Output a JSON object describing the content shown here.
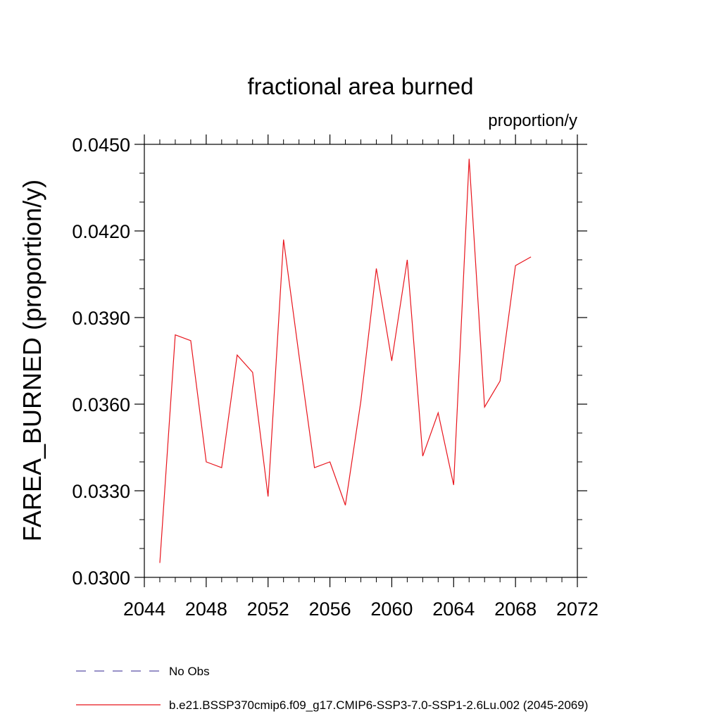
{
  "chart_data": {
    "type": "line",
    "title": "fractional area burned",
    "units_label": "proportion/y",
    "ylabel": "FAREA_BURNED  (proportion/y)",
    "xlabel": "",
    "xlim": [
      2044,
      2072
    ],
    "ylim": [
      0.03,
      0.045
    ],
    "x_ticks": [
      "2044",
      "2048",
      "2052",
      "2056",
      "2060",
      "2064",
      "2068",
      "2072"
    ],
    "y_ticks": [
      "0.0300",
      "0.0330",
      "0.0360",
      "0.0390",
      "0.0420",
      "0.0450"
    ],
    "grid": false,
    "legend_position": "bottom",
    "series": [
      {
        "name": "No Obs",
        "color": "#5a4fa6",
        "dash": "dashed",
        "x": [],
        "values": []
      },
      {
        "name": "b.e21.BSSP370cmip6.f09_g17.CMIP6-SSP3-7.0-SSP1-2.6Lu.002 (2045-2069)",
        "color": "#e8141c",
        "dash": "solid",
        "x": [
          2045,
          2046,
          2047,
          2048,
          2049,
          2050,
          2051,
          2052,
          2053,
          2054,
          2055,
          2056,
          2057,
          2058,
          2059,
          2060,
          2061,
          2062,
          2063,
          2064,
          2065,
          2066,
          2067,
          2068,
          2069
        ],
        "values": [
          0.0305,
          0.0384,
          0.0382,
          0.034,
          0.0338,
          0.0377,
          0.0371,
          0.0328,
          0.0417,
          0.0377,
          0.0338,
          0.034,
          0.0325,
          0.0361,
          0.0407,
          0.0375,
          0.041,
          0.0342,
          0.0357,
          0.0332,
          0.0445,
          0.0359,
          0.0368,
          0.0408,
          0.0411
        ]
      }
    ]
  }
}
